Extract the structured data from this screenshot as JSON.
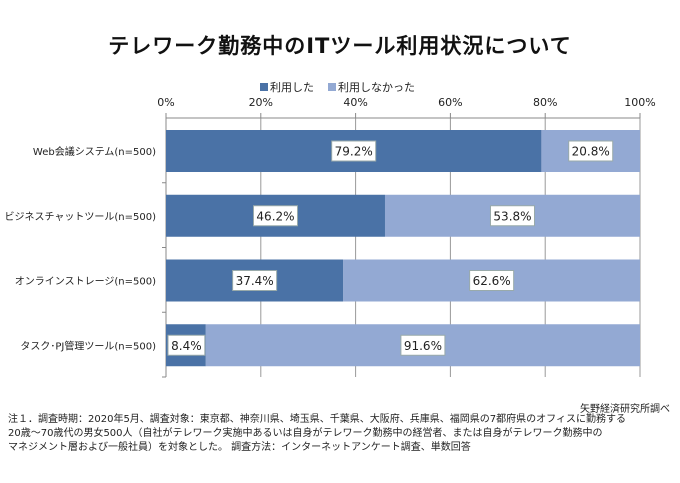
{
  "chart_data": {
    "type": "bar",
    "orientation": "horizontal",
    "stacked": true,
    "title": "テレワーク勤務中のITツール利用状況について",
    "categories": [
      "Web会議システム(n=500)",
      "ビジネスチャットツール(n=500)",
      "オンラインストレージ(n=500)",
      "タスク･PJ管理ツール(n=500)"
    ],
    "series": [
      {
        "name": "利用した",
        "values": [
          79.2,
          46.2,
          37.4,
          8.4
        ],
        "color": "#4a72a6"
      },
      {
        "name": "利用しなかった",
        "values": [
          20.8,
          53.8,
          62.6,
          91.6
        ],
        "color": "#93a9d3"
      }
    ],
    "xlim": [
      0,
      100
    ],
    "xticks": [
      "0%",
      "20%",
      "40%",
      "60%",
      "80%",
      "100%"
    ],
    "grid": true,
    "legend_position": "top",
    "axis_position": "top"
  },
  "source": "矢野経済研究所調べ",
  "notes": [
    "注１．調査時期：2020年5月、調査対象：東京都、神奈川県、埼玉県、千葉県、大阪府、兵庫県、福岡県の7都府県のオフィスに勤務する",
    "20歳～70歳代の男女500人（自社がテレワーク実施中あるいは自身がテレワーク勤務中の経営者、または自身がテレワーク勤務中の",
    "マネジメント層および一般社員）を対象とした。 調査方法：インターネットアンケート調査、単数回答"
  ]
}
